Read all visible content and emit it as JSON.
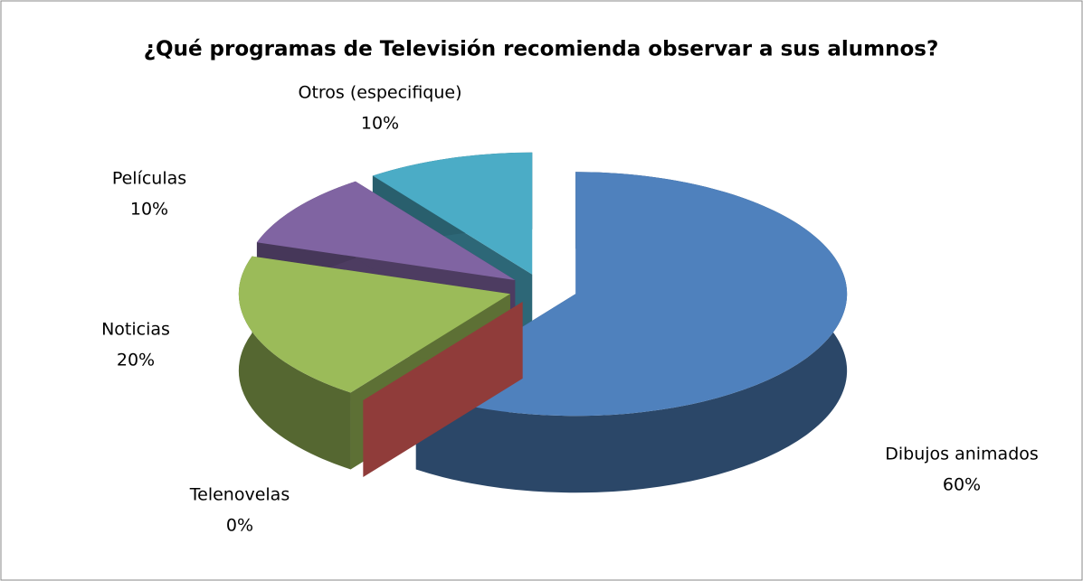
{
  "chart_data": {
    "type": "pie",
    "title": "¿Qué programas de Televisión recomienda observar a sus alumnos?",
    "categories": [
      "Dibujos animados",
      "Telenovelas",
      "Noticias",
      "Películas",
      "Otros (especifique)"
    ],
    "values": [
      60,
      0,
      20,
      10,
      10
    ],
    "value_labels": [
      "60%",
      "0%",
      "20%",
      "10%",
      "10%"
    ],
    "colors": [
      "#4f81bd",
      "#c0504d",
      "#9bbb59",
      "#8064a2",
      "#4bacc6"
    ]
  }
}
